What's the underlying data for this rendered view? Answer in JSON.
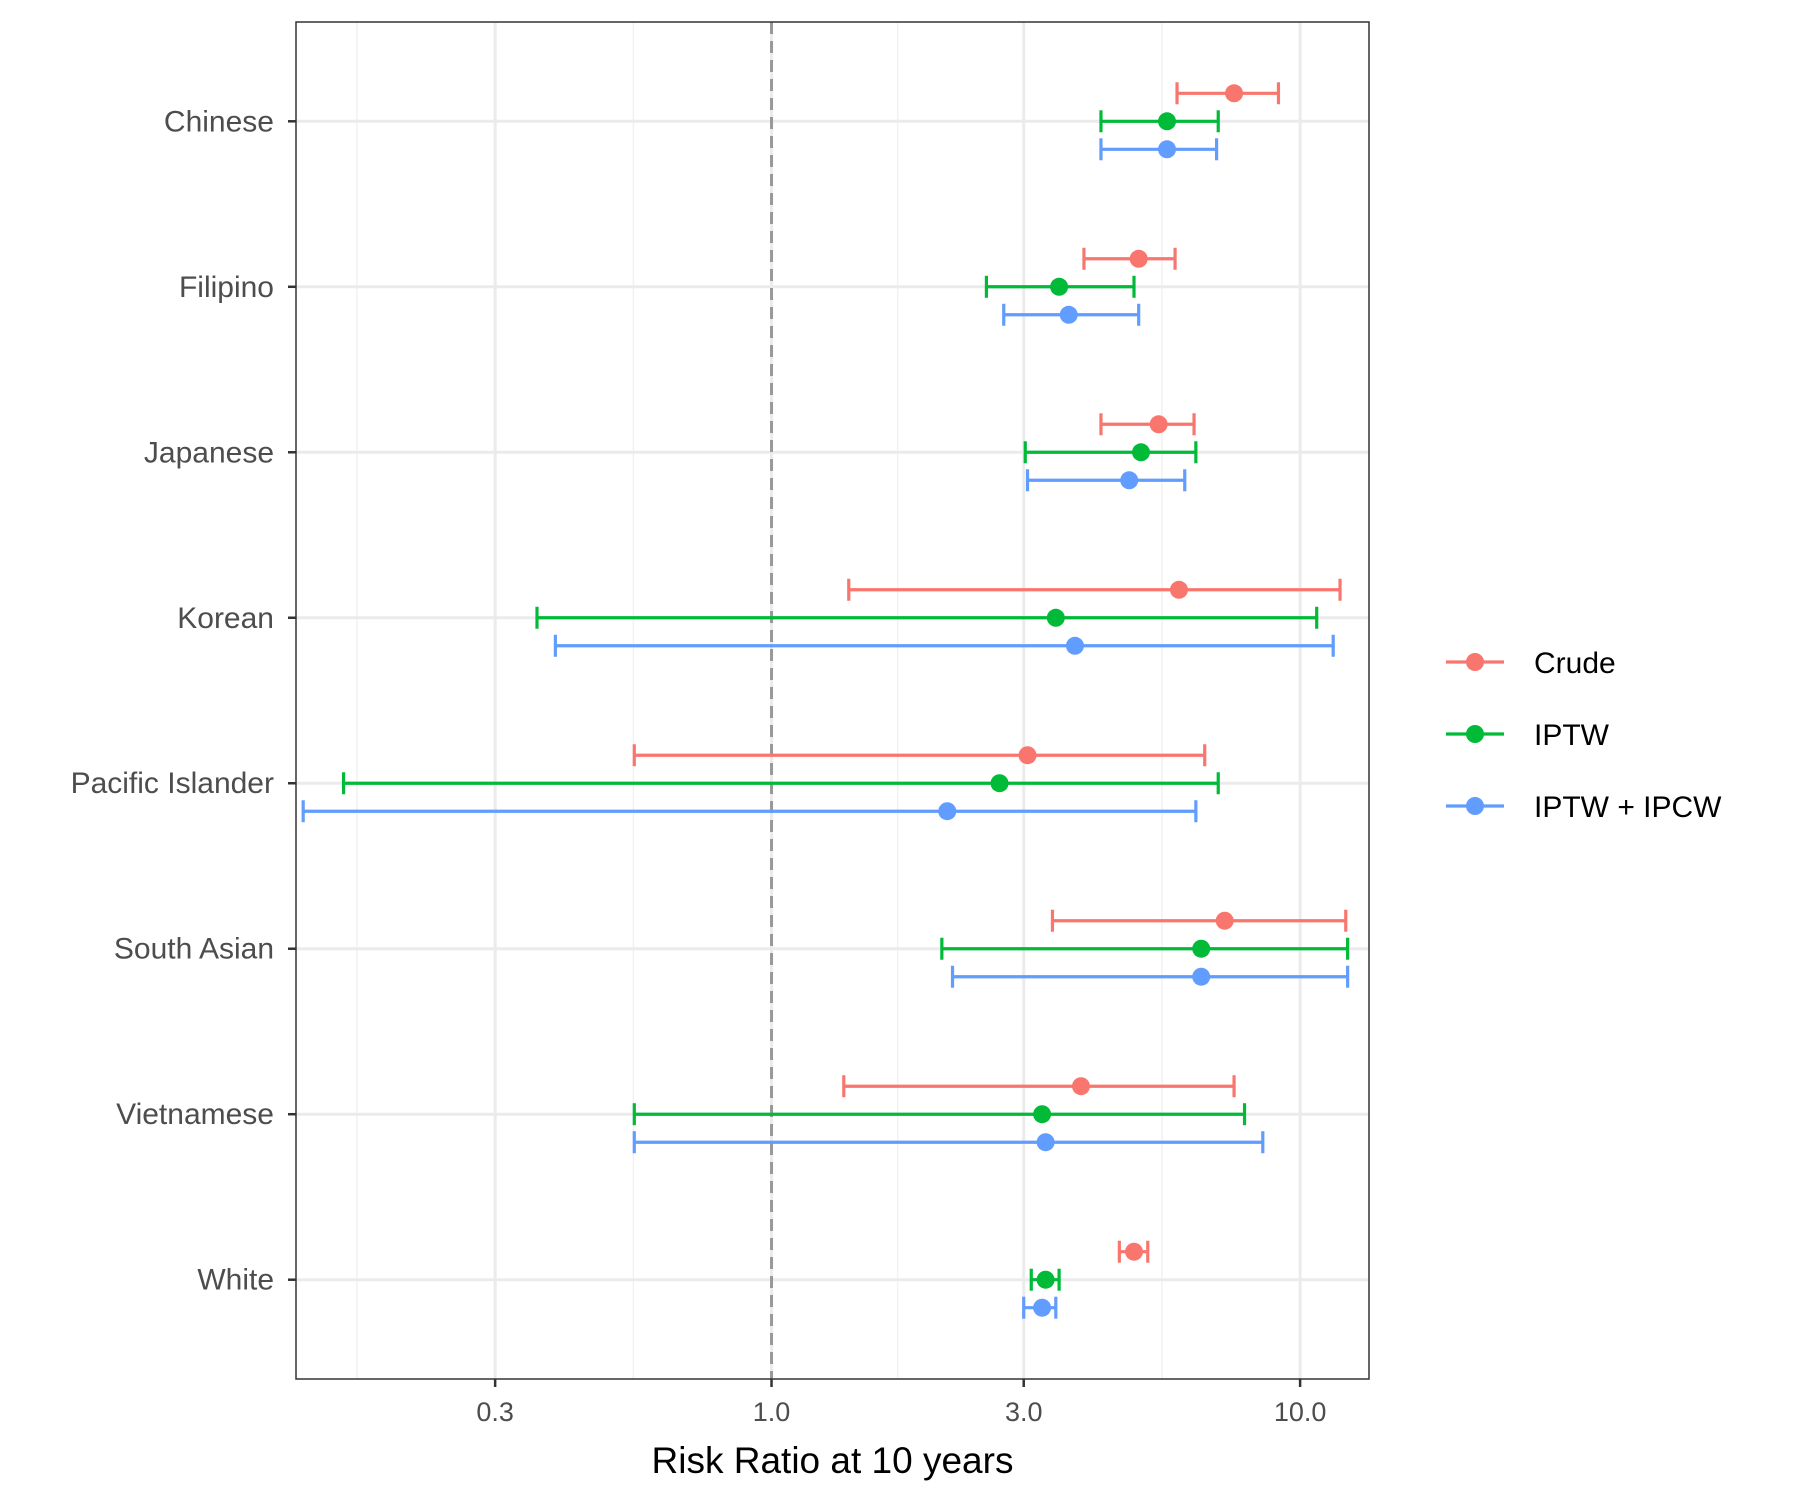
{
  "chart_data": {
    "type": "forest",
    "title": "",
    "xlabel": "Risk Ratio at 10 years",
    "ylabel": "",
    "x_scale": "log10",
    "xlim": [
      0.126,
      13.5
    ],
    "x_ticks": [
      0.3,
      1.0,
      3.0,
      10.0
    ],
    "x_tick_labels": [
      "0.3",
      "1.0",
      "3.0",
      "10.0"
    ],
    "reference_line": 1.0,
    "grid": true,
    "legend_position": "right",
    "categories": [
      "Chinese",
      "Filipino",
      "Japanese",
      "Korean",
      "Pacific Islander",
      "South Asian",
      "Vietnamese",
      "White"
    ],
    "series": [
      {
        "name": "Crude",
        "color": "#F8766D",
        "estimate": [
          7.5,
          4.95,
          5.4,
          5.9,
          3.05,
          7.2,
          3.85,
          4.85
        ],
        "lower": [
          5.85,
          3.9,
          4.2,
          1.4,
          0.55,
          3.4,
          1.37,
          4.55
        ],
        "upper": [
          9.1,
          5.8,
          6.3,
          11.9,
          6.6,
          12.2,
          7.5,
          5.15
        ]
      },
      {
        "name": "IPTW",
        "color": "#00BA38",
        "estimate": [
          5.6,
          3.5,
          5.0,
          3.45,
          2.7,
          6.5,
          3.25,
          3.3
        ],
        "lower": [
          4.2,
          2.55,
          3.02,
          0.36,
          0.155,
          2.1,
          0.55,
          3.1
        ],
        "upper": [
          7.0,
          4.85,
          6.35,
          10.75,
          7.0,
          12.3,
          7.85,
          3.5
        ]
      },
      {
        "name": "IPTW + IPCW",
        "color": "#619CFF",
        "estimate": [
          5.6,
          3.65,
          4.75,
          3.75,
          2.15,
          6.5,
          3.3,
          3.25
        ],
        "lower": [
          4.2,
          2.75,
          3.05,
          0.39,
          0.13,
          2.2,
          0.55,
          3.0
        ],
        "upper": [
          6.95,
          4.95,
          6.05,
          11.55,
          6.35,
          12.3,
          8.5,
          3.45
        ]
      }
    ]
  }
}
